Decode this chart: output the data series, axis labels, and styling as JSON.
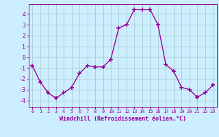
{
  "x": [
    0,
    1,
    2,
    3,
    4,
    5,
    6,
    7,
    8,
    9,
    10,
    11,
    12,
    13,
    14,
    15,
    16,
    17,
    18,
    19,
    20,
    21,
    22,
    23
  ],
  "y": [
    -0.8,
    -2.3,
    -3.3,
    -3.8,
    -3.3,
    -2.8,
    -1.5,
    -0.8,
    -0.9,
    -0.9,
    -0.2,
    2.7,
    3.0,
    4.4,
    4.4,
    4.4,
    3.0,
    -0.7,
    -1.3,
    -2.8,
    -3.0,
    -3.7,
    -3.3,
    -2.6
  ],
  "line_color": "#990099",
  "marker": "+",
  "markersize": 4,
  "linewidth": 1.0,
  "bg_color": "#cceeff",
  "grid_color": "#aacccc",
  "xlabel": "Windchill (Refroidissement éolien,°C)",
  "xlabel_color": "#990099",
  "tick_color": "#990099",
  "xlim": [
    -0.5,
    23.5
  ],
  "ylim": [
    -4.6,
    4.9
  ],
  "yticks": [
    -4,
    -3,
    -2,
    -1,
    0,
    1,
    2,
    3,
    4
  ],
  "xticks": [
    0,
    1,
    2,
    3,
    4,
    5,
    6,
    7,
    8,
    9,
    10,
    11,
    12,
    13,
    14,
    15,
    16,
    17,
    18,
    19,
    20,
    21,
    22,
    23
  ]
}
